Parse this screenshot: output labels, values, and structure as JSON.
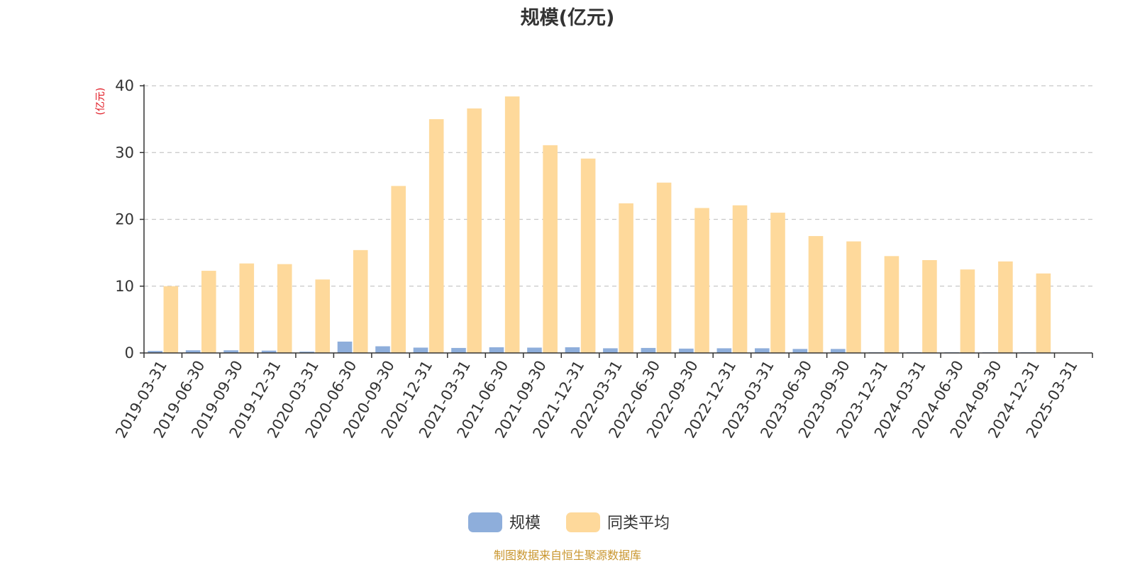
{
  "chart_data": {
    "type": "bar",
    "title": "规模(亿元)",
    "ylabel": "(亿元)",
    "ylim": [
      0,
      40
    ],
    "yticks": [
      0,
      10,
      20,
      30,
      40
    ],
    "grid": true,
    "legend_position": "bottom",
    "categories": [
      "2019-03-31",
      "2019-06-30",
      "2019-09-30",
      "2019-12-31",
      "2020-03-31",
      "2020-06-30",
      "2020-09-30",
      "2020-12-31",
      "2021-03-31",
      "2021-06-30",
      "2021-09-30",
      "2021-12-31",
      "2022-03-31",
      "2022-06-30",
      "2022-09-30",
      "2022-12-31",
      "2023-03-31",
      "2023-06-30",
      "2023-09-30",
      "2023-12-31",
      "2024-03-31",
      "2024-06-30",
      "2024-09-30",
      "2024-12-31",
      "2025-03-31"
    ],
    "series": [
      {
        "name": "规模",
        "color": "#8eaedb",
        "values": [
          0.3,
          0.4,
          0.4,
          0.35,
          0.2,
          1.7,
          1.0,
          0.8,
          0.75,
          0.85,
          0.8,
          0.85,
          0.7,
          0.75,
          0.65,
          0.7,
          0.7,
          0.6,
          0.6,
          0.1,
          0.1,
          0.1,
          0.1,
          0.1,
          0.05
        ]
      },
      {
        "name": "同类平均",
        "color": "#fed99b",
        "values": [
          10.0,
          12.3,
          13.4,
          13.3,
          11.0,
          15.4,
          25.0,
          35.0,
          36.6,
          38.4,
          31.1,
          29.1,
          22.4,
          25.5,
          21.7,
          22.1,
          21.0,
          17.5,
          16.7,
          14.5,
          13.9,
          12.5,
          13.7,
          11.9,
          null
        ]
      }
    ]
  },
  "source_note": "制图数据来自恒生聚源数据库"
}
